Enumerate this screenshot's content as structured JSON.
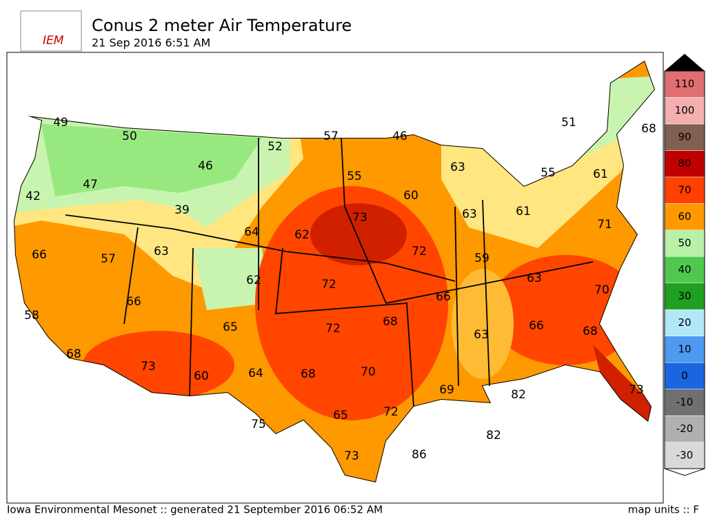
{
  "header": {
    "logo": "IEM",
    "title": "Conus 2 meter Air Temperature",
    "subtitle": "21 Sep 2016 6:51 AM"
  },
  "stations": [
    49,
    50,
    46,
    52,
    57,
    46,
    47,
    42,
    39,
    64,
    62,
    73,
    55,
    60,
    63,
    63,
    61,
    55,
    51,
    61,
    68,
    71,
    66,
    57,
    63,
    62,
    72,
    72,
    59,
    63,
    70,
    66,
    66,
    58,
    65,
    72,
    68,
    63,
    66,
    68,
    68,
    73,
    60,
    64,
    68,
    70,
    69,
    82,
    73,
    75,
    65,
    72,
    82,
    86,
    73
  ],
  "colorbar": {
    "ticks": [
      -30,
      -20,
      -10,
      0,
      10,
      20,
      30,
      40,
      50,
      60,
      70,
      80,
      90,
      100,
      110
    ],
    "colors": [
      "#d9d9d9",
      "#b0b0b0",
      "#707070",
      "#1a66e0",
      "#4d9af0",
      "#b0e8f8",
      "#20a020",
      "#50c850",
      "#b8f0a8",
      "#ff9900",
      "#ff4000",
      "#c00000",
      "#806050",
      "#f4b0b0",
      "#e07070"
    ]
  },
  "footer": {
    "credit": "Iowa Environmental Mesonet :: generated 21 September 2016 06:52 AM",
    "units": "map units :: F"
  }
}
